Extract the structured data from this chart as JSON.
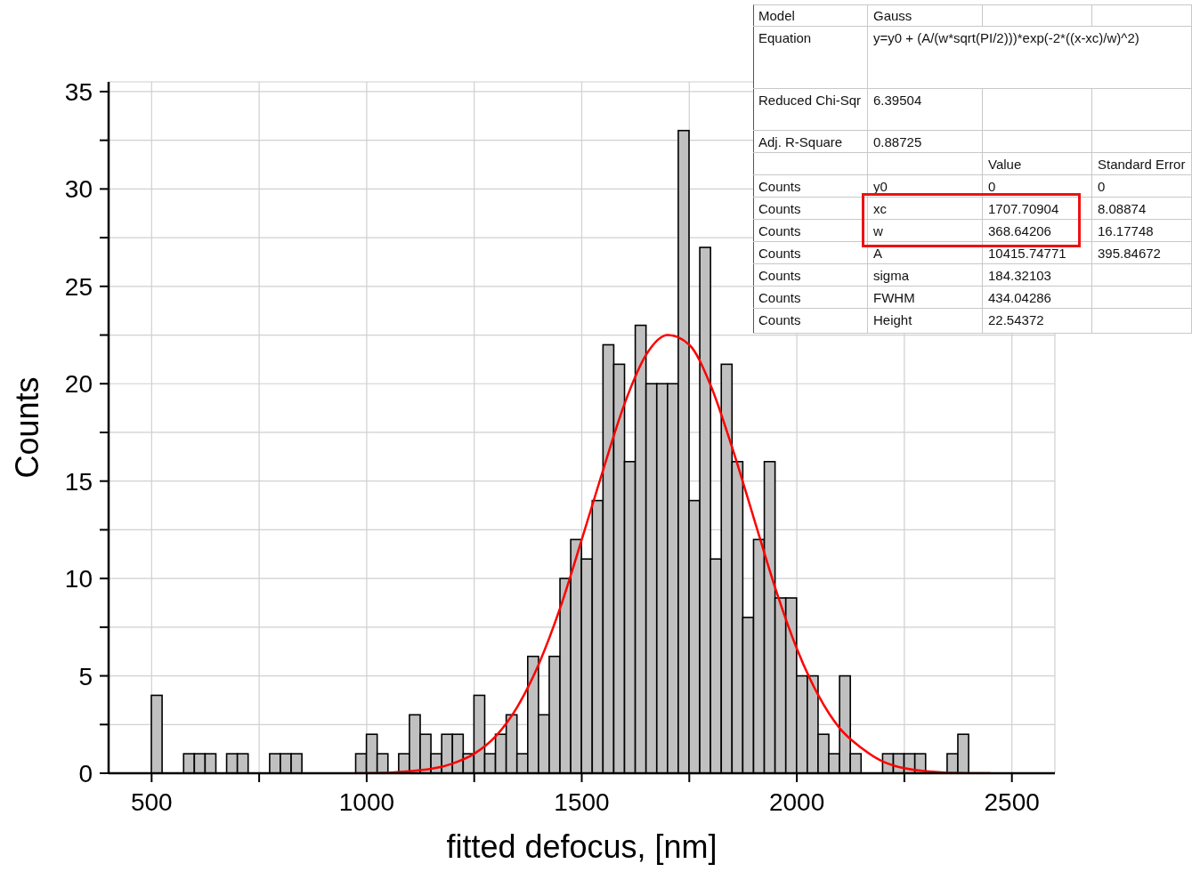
{
  "chart_data": {
    "type": "histogram",
    "xlabel": "fitted defocus, [nm]",
    "ylabel": "Counts",
    "bins": [
      500,
      525,
      550,
      575,
      600,
      625,
      650,
      675,
      700,
      725,
      750,
      775,
      800,
      825,
      850,
      875,
      900,
      925,
      950,
      975,
      1000,
      1025,
      1050,
      1075,
      1100,
      1125,
      1150,
      1175,
      1200,
      1225,
      1250,
      1275,
      1300,
      1325,
      1350,
      1375,
      1400,
      1425,
      1450,
      1475,
      1500,
      1525,
      1550,
      1575,
      1600,
      1625,
      1650,
      1675,
      1700,
      1725,
      1750,
      1775,
      1800,
      1825,
      1850,
      1875,
      1900,
      1925,
      1950,
      1975,
      2000,
      2025,
      2050,
      2075,
      2100,
      2125,
      2150,
      2175,
      2200,
      2225,
      2250,
      2275,
      2300,
      2325,
      2350,
      2375,
      2400
    ],
    "values": [
      4,
      0,
      0,
      1,
      1,
      1,
      0,
      1,
      1,
      0,
      0,
      1,
      1,
      1,
      0,
      0,
      0,
      0,
      0,
      1,
      2,
      1,
      0,
      1,
      3,
      2,
      1,
      2,
      2,
      1,
      4,
      1,
      2,
      3,
      1,
      6,
      3,
      6,
      10,
      12,
      11,
      14,
      22,
      21,
      16,
      23,
      20,
      20,
      20,
      33,
      14,
      27,
      11,
      21,
      16,
      8,
      12,
      16,
      9,
      9,
      5,
      5,
      2,
      1,
      5,
      1,
      0,
      0,
      1,
      1,
      1,
      1,
      0,
      0,
      1,
      2
    ],
    "color": "#c0c0c0",
    "series": [
      {
        "type": "line",
        "color": "#ff0000",
        "x": [
          975,
          1000,
          1100,
          1200,
          1250,
          1300,
          1350,
          1400,
          1450,
          1500,
          1550,
          1600,
          1650,
          1700,
          1750,
          1800,
          1850,
          1900,
          1950,
          2000,
          2050,
          2100,
          2150,
          2200,
          2300,
          2400,
          2450
        ],
        "values": [
          0,
          0,
          0.1,
          0.5,
          1,
          1.9,
          3.4,
          5.6,
          8.5,
          12,
          15.6,
          19,
          21.5,
          22.5,
          22,
          19.9,
          16.7,
          13.1,
          9.5,
          6.4,
          4,
          2.3,
          1.3,
          0.6,
          0.1,
          0,
          0
        ]
      }
    ],
    "xlim": [
      400,
      2600
    ],
    "xticks": [
      500,
      {
        "value": 750,
        "label": null
      },
      1000,
      {
        "value": 1250,
        "label": null
      },
      1500,
      {
        "value": 1750,
        "label": null
      },
      2000,
      {
        "value": 2250,
        "label": null
      },
      2500
    ],
    "ylim": [
      0,
      35.5
    ],
    "yticks": [
      0,
      {
        "value": 2.5,
        "label": null
      },
      5,
      {
        "value": 7.5,
        "label": null
      },
      10,
      {
        "value": 12.5,
        "label": null
      },
      15,
      {
        "value": 17.5,
        "label": null
      },
      20,
      {
        "value": 22.5,
        "label": null
      },
      25,
      {
        "value": 27.5,
        "label": null
      },
      30,
      {
        "value": 32.5,
        "label": null
      },
      35
    ],
    "grid": true,
    "annotations": [
      "Model",
      "Gauss",
      "Equation",
      "y=y0 + (A/(w*sqrt(PI/2)))*exp(-2*((x-xc)/w)^2)",
      "Reduced Chi-Sqr",
      "6.39504",
      "Adj. R-Square",
      "0.88725",
      "Value",
      "Standard Error",
      "Counts",
      "y0",
      "0",
      "0",
      "Counts",
      "xc",
      "1707.70904",
      "8.08874",
      "Counts",
      "w",
      "368.64206",
      "16.17748",
      "Counts",
      "A",
      "10415.74771",
      "395.84672",
      "Counts",
      "sigma",
      "184.32103",
      "Counts",
      "FWHM",
      "434.04286",
      "Counts",
      "Height",
      "22.54372"
    ]
  }
}
